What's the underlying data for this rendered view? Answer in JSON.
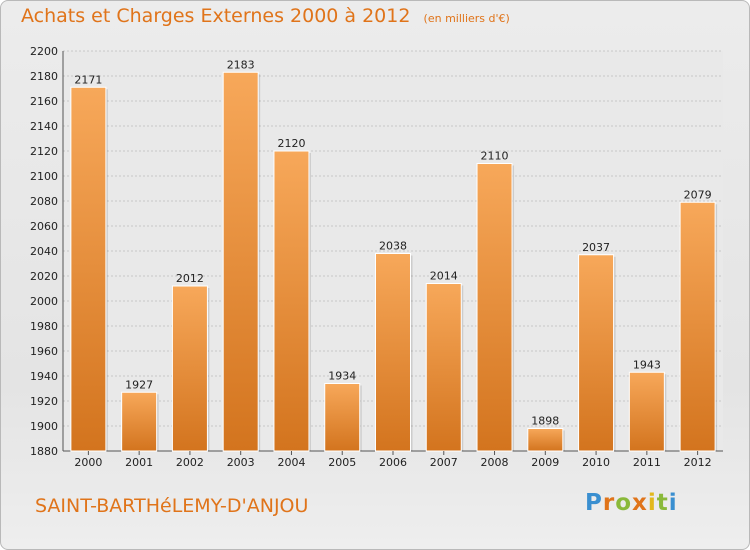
{
  "header": {
    "title": "Achats et Charges Externes 2000 à 2012",
    "unit": "(en milliers d'€)"
  },
  "footer": {
    "place": "SAINT-BARTHéLEMY-D'ANJOU",
    "logo_text": "Proxiti"
  },
  "colors": {
    "bar_top": "#f7a85a",
    "bar_bottom": "#d3741e",
    "accent": "#e0741a"
  },
  "chart_data": {
    "type": "bar",
    "title": "Achats et Charges Externes 2000 à 2012",
    "subtitle": "(en milliers d'€)",
    "categories": [
      "2000",
      "2001",
      "2002",
      "2003",
      "2004",
      "2005",
      "2006",
      "2007",
      "2008",
      "2009",
      "2010",
      "2011",
      "2012"
    ],
    "values": [
      2171,
      1927,
      2012,
      2183,
      2120,
      1934,
      2038,
      2014,
      2110,
      1898,
      2037,
      1943,
      2079
    ],
    "ylim": [
      1880,
      2200
    ],
    "yticks": [
      1880,
      1900,
      1920,
      1940,
      1960,
      1980,
      2000,
      2020,
      2040,
      2060,
      2080,
      2100,
      2120,
      2140,
      2160,
      2180,
      2200
    ],
    "xlabel": "",
    "ylabel": "",
    "grid": true
  }
}
